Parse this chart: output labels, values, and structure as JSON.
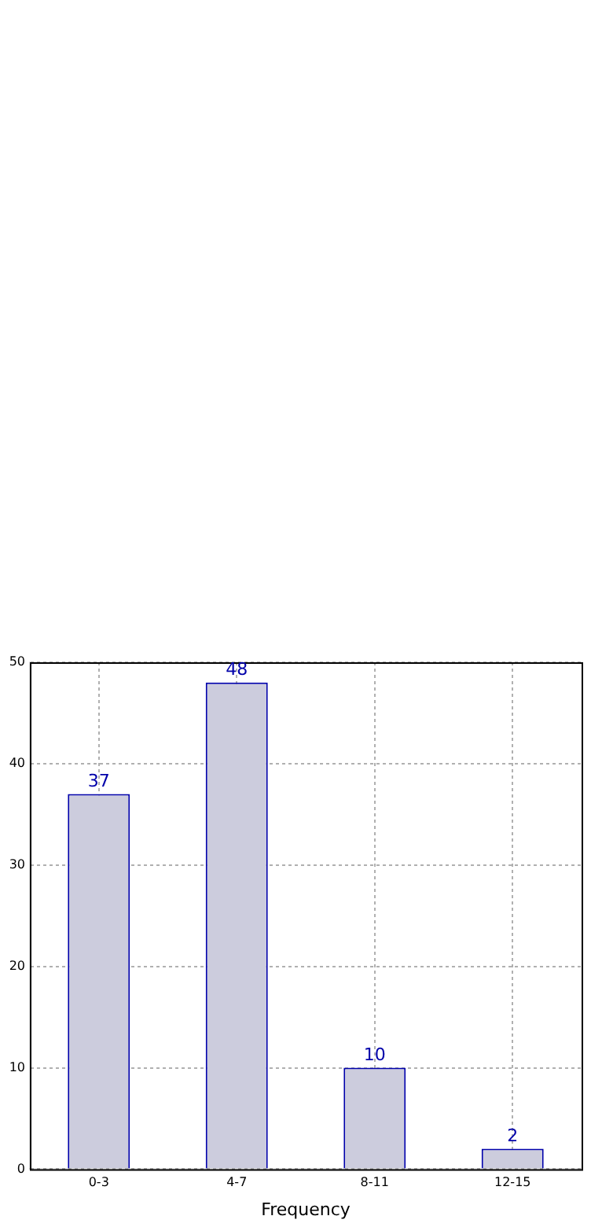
{
  "chart_data": {
    "type": "bar",
    "xlabel": "Frequency",
    "categories": [
      "0-3",
      "4-7",
      "8-11",
      "12-15"
    ],
    "values": [
      37,
      48,
      10,
      2
    ],
    "color": "#ccccdd",
    "ylim": [
      0,
      50
    ],
    "yticks": [
      0,
      10,
      20,
      30,
      40,
      50
    ],
    "grid": true,
    "data_labels": true,
    "legend": false
  }
}
